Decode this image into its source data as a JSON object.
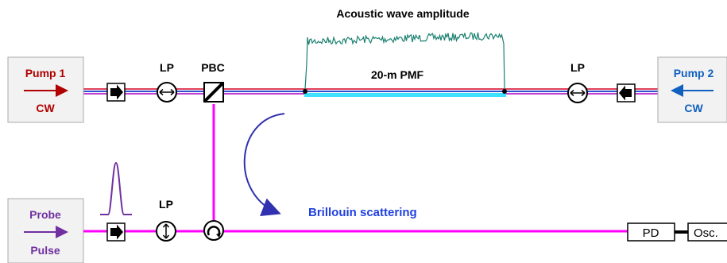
{
  "title": "Acoustic wave amplitude",
  "fiber_label": "20-m PMF",
  "scatter_label": "Brillouin scattering",
  "pump1": {
    "name": "Pump 1",
    "mode": "CW"
  },
  "pump2": {
    "name": "Pump 2",
    "mode": "CW"
  },
  "probe": {
    "name": "Probe",
    "mode": "Pulse"
  },
  "components": {
    "lp_left": "LP",
    "pbc": "PBC",
    "lp_right": "LP",
    "lp_bottom": "LP",
    "pd": "PD",
    "osc": "Osc."
  },
  "colors": {
    "pump1_text": "#b00000",
    "pump2_text": "#1060c0",
    "probe_text": "#7030a0",
    "probe_line": "#ff00ff",
    "acoustic_wave": "#1a8070",
    "scatter_text": "#2040e0",
    "scatter_arrow": "#3030b0",
    "fiber_highlight": "#40e0ff"
  },
  "icons": [
    "isolator-right-icon",
    "isolator-left-icon",
    "polarizer-horizontal-icon",
    "polarizer-vertical-icon",
    "pbc-icon",
    "circulator-icon",
    "pulse-waveform-icon"
  ]
}
